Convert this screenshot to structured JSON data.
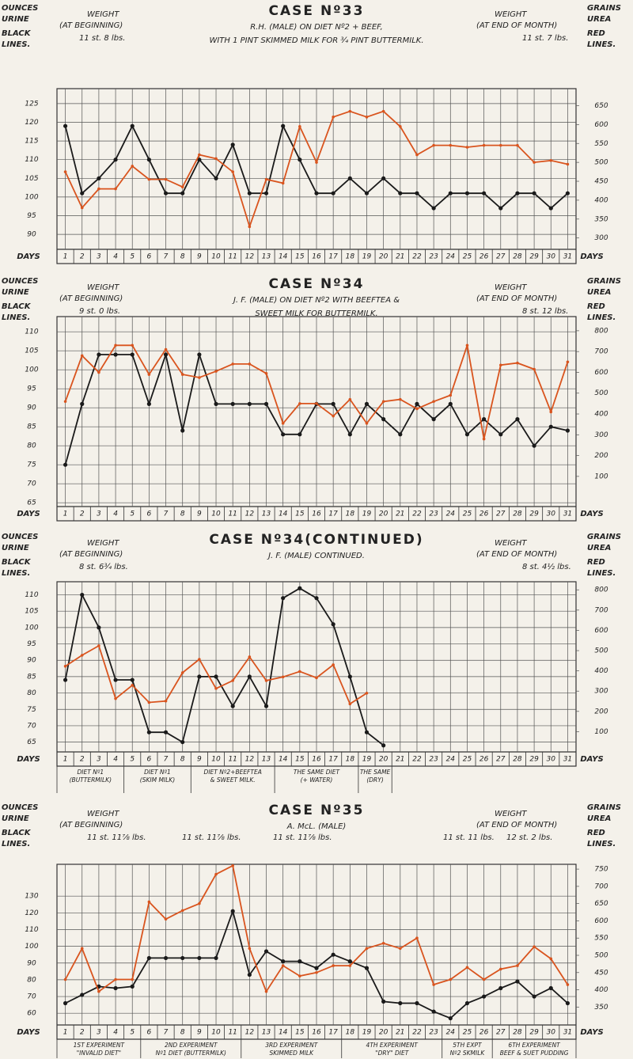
{
  "chart_data": [
    {
      "type": "line",
      "title": "CASE Nº33",
      "subtitle": [
        "R.H. (MALE) ON DIET Nº2 + BEEF,",
        "WITH 1 PINT SKIMMED MILK FOR ¾ PINT BUTTERMILK."
      ],
      "left_label": [
        "OUNCES",
        "URINE",
        "BLACK",
        "LINES."
      ],
      "right_label": [
        "GRAINS",
        "UREA",
        "RED",
        "LINES."
      ],
      "weight_start": [
        "WEIGHT",
        "(AT BEGINNING)"
      ],
      "weight_start_values": [
        "11 st. 8 lbs."
      ],
      "weight_end": [
        "WEIGHT",
        "(AT END OF MONTH)"
      ],
      "weight_end_values": [
        "11 st. 7 lbs."
      ],
      "x_label": "DAYS",
      "x": [
        1,
        2,
        3,
        4,
        5,
        6,
        7,
        8,
        9,
        10,
        11,
        12,
        13,
        14,
        15,
        16,
        17,
        18,
        19,
        20,
        21,
        22,
        23,
        24,
        25,
        26,
        27,
        28,
        29,
        30,
        31
      ],
      "ylim": [
        86,
        129
      ],
      "yticks": [
        90,
        95,
        100,
        105,
        110,
        115,
        120,
        125
      ],
      "y2lim": [
        270,
        695
      ],
      "y2ticks": [
        300,
        350,
        400,
        450,
        500,
        550,
        600,
        650
      ],
      "grid": true,
      "series": [
        {
          "color": "#1a1a1a",
          "axis": "y",
          "values": [
            119,
            101,
            105,
            110,
            119,
            110,
            101,
            101,
            110,
            105,
            114,
            101,
            101,
            119,
            110,
            101,
            101,
            105,
            101,
            105,
            101,
            101,
            97,
            101,
            101,
            101,
            97,
            101,
            101,
            97,
            101
          ]
        },
        {
          "color": "#d9541e",
          "axis": "y2",
          "values": [
            475,
            380,
            430,
            430,
            490,
            455,
            455,
            435,
            520,
            510,
            475,
            330,
            455,
            445,
            595,
            500,
            620,
            635,
            620,
            635,
            595,
            520,
            545,
            545,
            540,
            545,
            545,
            545,
            500,
            505,
            495
          ]
        }
      ]
    },
    {
      "type": "line",
      "title": "CASE Nº34",
      "subtitle": [
        "J. F. (MALE) ON DIET Nº2 WITH BEEFTEA &",
        "SWEET MILK FOR BUTTERMILK."
      ],
      "left_label": [
        "OUNCES",
        "URINE",
        "BLACK",
        "LINES."
      ],
      "right_label": [
        "GRAINS",
        "UREA",
        "RED",
        "LINES."
      ],
      "weight_start": [
        "WEIGHT",
        "(AT BEGINNING)"
      ],
      "weight_start_values": [
        "9 st. 0 lbs."
      ],
      "weight_end": [
        "WEIGHT",
        "(AT END OF MONTH)"
      ],
      "weight_end_values": [
        "8 st. 12 lbs."
      ],
      "x_label": "DAYS",
      "x": [
        1,
        2,
        3,
        4,
        5,
        6,
        7,
        8,
        9,
        10,
        11,
        12,
        13,
        14,
        15,
        16,
        17,
        18,
        19,
        20,
        21,
        22,
        23,
        24,
        25,
        26,
        27,
        28,
        29,
        30,
        31
      ],
      "ylim": [
        64,
        114
      ],
      "yticks": [
        65,
        70,
        75,
        80,
        85,
        90,
        95,
        100,
        105,
        110
      ],
      "y2lim": [
        -45,
        868
      ],
      "y2ticks": [
        100,
        200,
        300,
        400,
        500,
        600,
        700,
        800
      ],
      "grid": true,
      "series": [
        {
          "color": "#1a1a1a",
          "axis": "y",
          "values": [
            75,
            91,
            104,
            104,
            104,
            91,
            104,
            84,
            104,
            91,
            91,
            91,
            91,
            83,
            83,
            91,
            91,
            83,
            91,
            87,
            83,
            91,
            87,
            91,
            83,
            87,
            83,
            87,
            80,
            85,
            84
          ]
        },
        {
          "color": "#d9541e",
          "axis": "y2",
          "values": [
            460,
            680,
            600,
            730,
            730,
            590,
            710,
            590,
            575,
            605,
            640,
            640,
            595,
            355,
            450,
            450,
            390,
            470,
            355,
            460,
            470,
            425,
            460,
            490,
            730,
            280,
            635,
            645,
            615,
            410,
            650
          ]
        }
      ]
    },
    {
      "type": "line",
      "title": "CASE Nº34(CONTINUED)",
      "subtitle": [
        "J. F. (MALE) CONTINUED."
      ],
      "left_label": [
        "OUNCES",
        "URINE",
        "BLACK",
        "LINES."
      ],
      "right_label": [
        "GRAINS",
        "UREA",
        "RED",
        "LINES."
      ],
      "weight_start": [
        "WEIGHT",
        "(AT BEGINNING)"
      ],
      "weight_start_values": [
        "8 st. 6¾ lbs."
      ],
      "weight_end": [
        "WEIGHT",
        "(AT END OF MONTH)"
      ],
      "weight_end_values": [
        "8 st. 4½ lbs."
      ],
      "x_label": "DAYS",
      "x": [
        1,
        2,
        3,
        4,
        5,
        6,
        7,
        8,
        9,
        10,
        11,
        12,
        13,
        14,
        15,
        16,
        17,
        18,
        19,
        20,
        21,
        22,
        23,
        24,
        25,
        26,
        27,
        28,
        29,
        30,
        31
      ],
      "ylim": [
        62,
        114
      ],
      "yticks": [
        65,
        70,
        75,
        80,
        85,
        90,
        95,
        100,
        105,
        110
      ],
      "y2lim": [
        0,
        840
      ],
      "y2ticks": [
        100,
        200,
        300,
        400,
        500,
        600,
        700,
        800
      ],
      "grid": true,
      "annotations": [
        [
          "DIET Nº1",
          "(BUTTERMILK)"
        ],
        [
          "DIET Nº1",
          "(SKIM MILK)"
        ],
        [
          "DIET Nº2+BEEFTEA",
          "& SWEET MILK."
        ],
        [
          "THE SAME DIET",
          "(+ WATER)"
        ],
        [
          "THE SAME",
          "(DRY)"
        ]
      ],
      "series": [
        {
          "color": "#1a1a1a",
          "axis": "y",
          "values": [
            84,
            110,
            100,
            84,
            84,
            68,
            68,
            65,
            85,
            85,
            76,
            85,
            76,
            109,
            112,
            109,
            101,
            85,
            68,
            64,
            null,
            null,
            null,
            null,
            null,
            null,
            null,
            null,
            null,
            null,
            null
          ]
        },
        {
          "color": "#d9541e",
          "axis": "y2",
          "values": [
            423,
            477,
            524,
            263,
            329,
            244,
            251,
            391,
            457,
            313,
            352,
            469,
            352,
            370,
            397,
            366,
            430,
            237,
            290,
            null,
            null,
            null,
            null,
            null,
            null,
            null,
            null,
            null,
            null,
            null,
            null
          ]
        }
      ]
    },
    {
      "type": "line",
      "title": "CASE Nº35",
      "subtitle": [
        "A. McL. (MALE)"
      ],
      "left_label": [
        "OUNCES",
        "URINE",
        "BLACK",
        "LINES."
      ],
      "right_label": [
        "GRAINS",
        "UREA",
        "RED",
        "LINES."
      ],
      "weight_start": [
        "WEIGHT",
        "(AT BEGINNING)"
      ],
      "weight_start_values": [
        "11 st. 11⅞ lbs.",
        "11 st. 11⅞ lbs.",
        "11 st. 11⅞ lbs."
      ],
      "weight_end": [
        "WEIGHT",
        "(AT END OF MONTH)"
      ],
      "weight_end_values": [
        "11 st. 11 lbs.",
        "12 st. 2 lbs."
      ],
      "x_label": "DAYS",
      "x": [
        1,
        2,
        3,
        4,
        5,
        6,
        7,
        8,
        9,
        10,
        11,
        12,
        13,
        14,
        15,
        16,
        17,
        18,
        19,
        20,
        21,
        22,
        23,
        24,
        25,
        26,
        27,
        28,
        29,
        30,
        31
      ],
      "ylim": [
        53,
        149
      ],
      "yticks": [
        60,
        70,
        80,
        90,
        100,
        110,
        120,
        130
      ],
      "y2lim": [
        298,
        764
      ],
      "y2ticks": [
        350,
        400,
        450,
        500,
        550,
        600,
        650,
        700,
        750
      ],
      "grid": true,
      "annotations": [
        [
          "1ST EXPERIMENT",
          "\"INVALID DIET\""
        ],
        [
          "2ND EXPERIMENT",
          "Nº1 DIET (BUTTERMILK)"
        ],
        [
          "3RD EXPERIMENT",
          "SKIMMED MILK"
        ],
        [
          "4TH EXPERIMENT",
          "\"DRY\" DIET"
        ],
        [
          "5TH EXPT",
          "Nº2 SKMILK"
        ],
        [
          "6TH EXPERIMENT",
          "BEEF & SUET PUDDING"
        ]
      ],
      "series": [
        {
          "color": "#1a1a1a",
          "axis": "y",
          "values": [
            66,
            71,
            76,
            75,
            76,
            93,
            93,
            93,
            93,
            93,
            121,
            83,
            97,
            91,
            91,
            87,
            95,
            91,
            87,
            67,
            66,
            66,
            61,
            57,
            66,
            70,
            75,
            79,
            70,
            75,
            66
          ]
        },
        {
          "color": "#d9541e",
          "axis": "y2",
          "values": [
            430,
            520,
            395,
            430,
            430,
            655,
            605,
            630,
            650,
            735,
            760,
            520,
            395,
            470,
            440,
            450,
            470,
            470,
            520,
            535,
            520,
            550,
            415,
            430,
            465,
            430,
            460,
            470,
            525,
            490,
            415
          ]
        }
      ]
    }
  ]
}
